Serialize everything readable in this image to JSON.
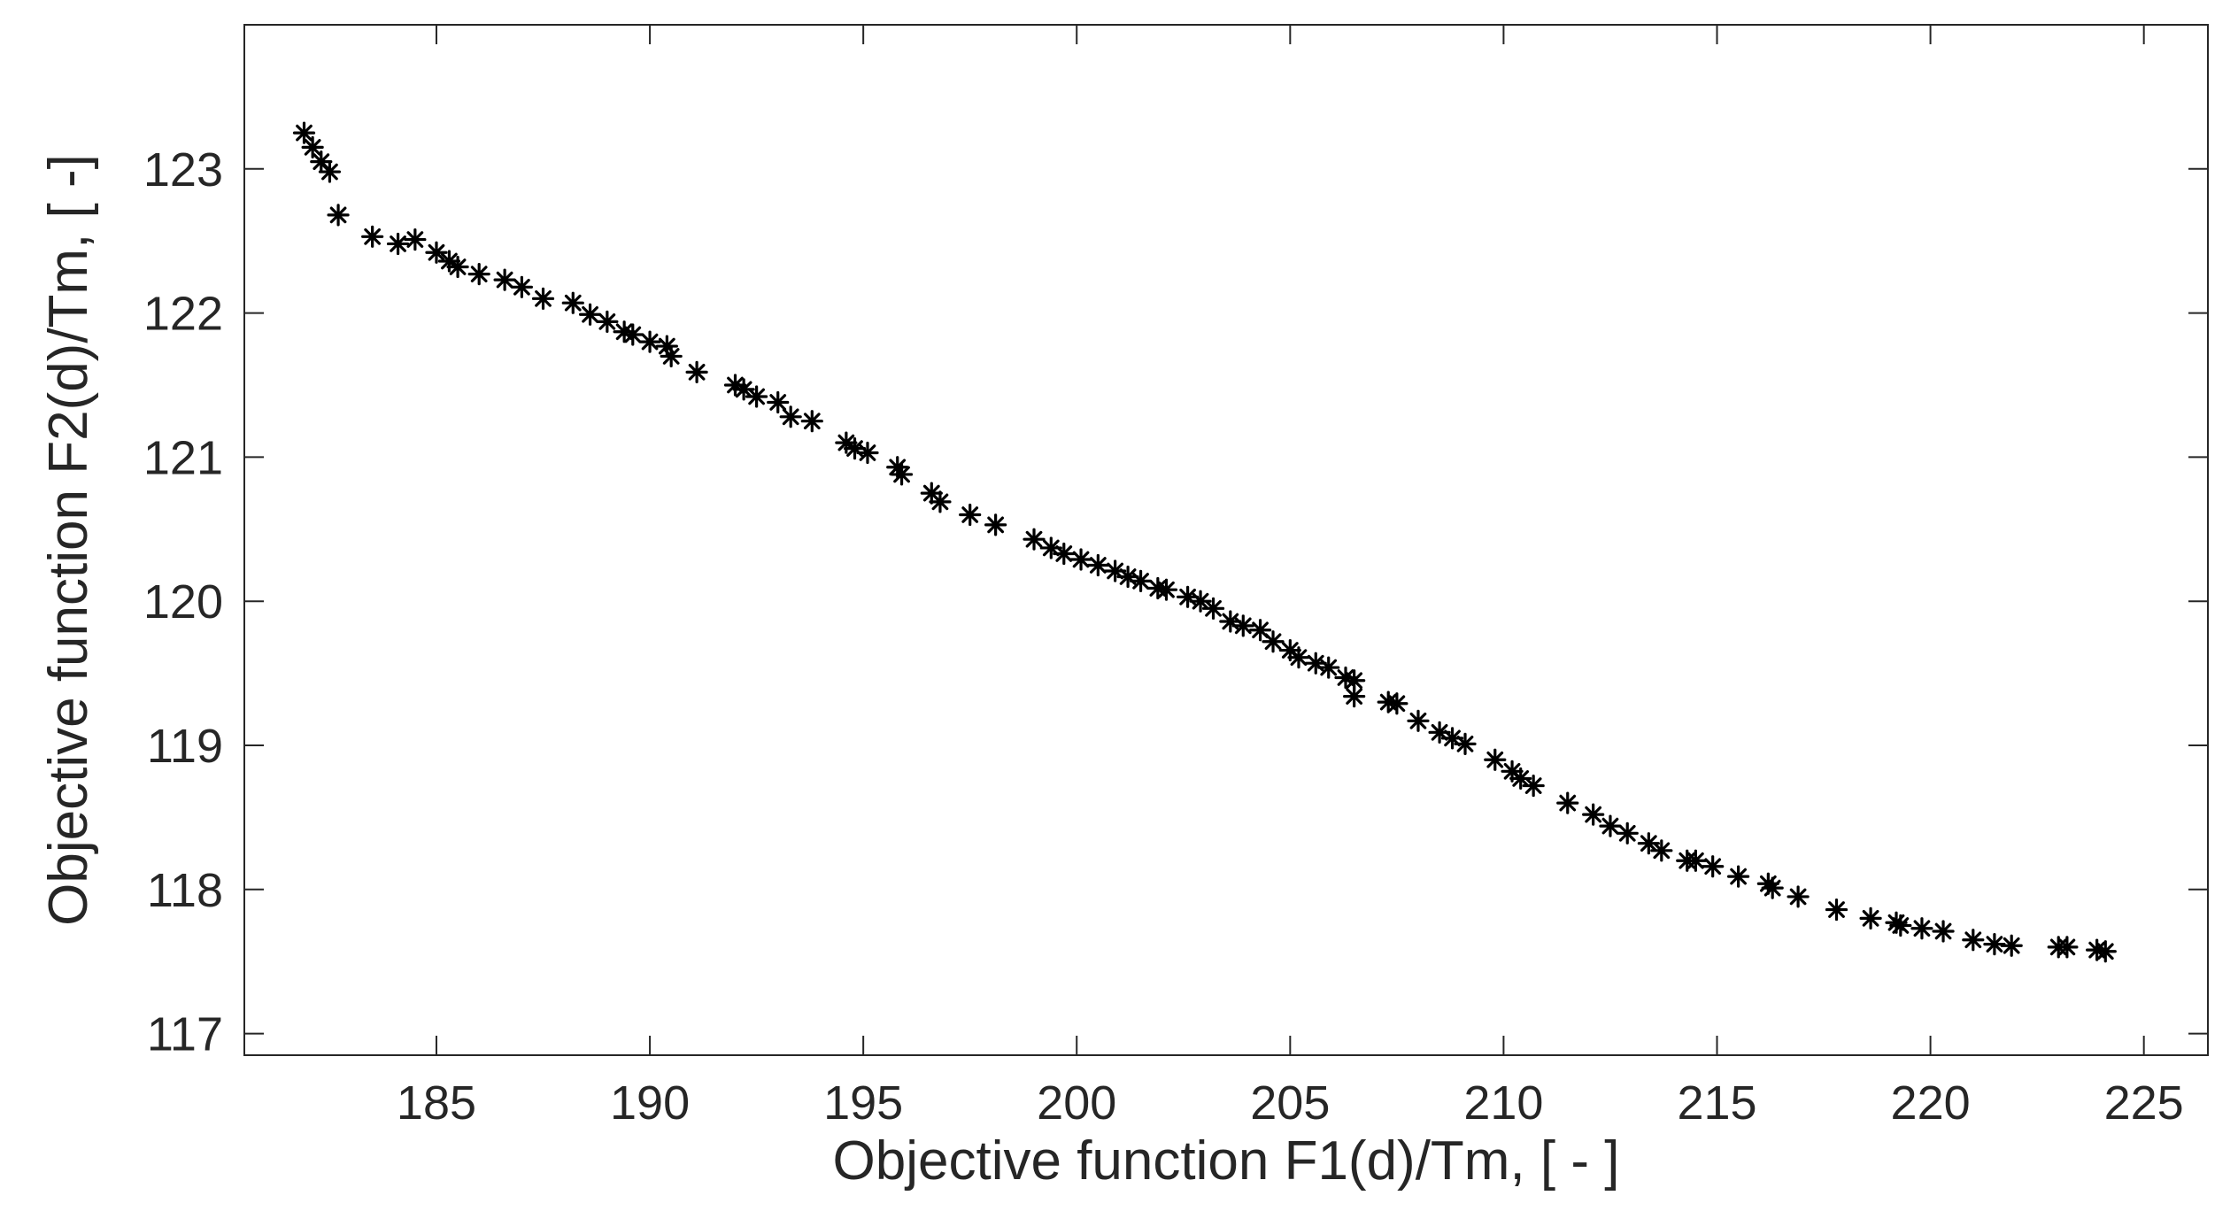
{
  "chart_data": {
    "type": "scatter",
    "title": "",
    "xlabel": "Objective function F1(d)/Tm, [ - ]",
    "ylabel": "Objective function F2(d)/Tm, [ -]",
    "xlim": [
      180.5,
      226.5
    ],
    "ylim": [
      116.85,
      124.0
    ],
    "xticks": [
      185,
      190,
      195,
      200,
      205,
      210,
      215,
      220,
      225
    ],
    "yticks": [
      117,
      118,
      119,
      120,
      121,
      122,
      123
    ],
    "xtick_labels": [
      "185",
      "190",
      "195",
      "200",
      "205",
      "210",
      "215",
      "220",
      "225"
    ],
    "ytick_labels": [
      "117",
      "118",
      "119",
      "120",
      "121",
      "122",
      "123"
    ],
    "marker": "asterisk",
    "marker_color": "#000000",
    "grid": false,
    "box": true,
    "series": [
      {
        "x": [
          181.9,
          182.1,
          182.3,
          182.5,
          182.7,
          183.5,
          184.1,
          184.5,
          185.0,
          185.3,
          185.5,
          186.0,
          186.6,
          187.0,
          187.5,
          188.2,
          188.6,
          189.0,
          189.4,
          189.6,
          190.0,
          190.4,
          190.5,
          191.1,
          192.0,
          192.2,
          192.5,
          193.0,
          193.3,
          193.8,
          194.6,
          194.8,
          195.1,
          195.8,
          195.9,
          196.6,
          196.8,
          197.5,
          198.1,
          199.0,
          199.4,
          199.7,
          200.1,
          200.5,
          200.9,
          201.2,
          201.5,
          201.9,
          202.1,
          202.6,
          202.9,
          203.2,
          203.6,
          203.9,
          204.3,
          204.6,
          205.0,
          205.2,
          205.6,
          205.9,
          206.3,
          206.5,
          206.5,
          207.3,
          207.5,
          208.0,
          208.5,
          208.8,
          209.1,
          209.8,
          210.2,
          210.4,
          210.7,
          211.5,
          212.1,
          212.5,
          212.9,
          213.4,
          213.7,
          214.3,
          214.5,
          214.9,
          215.5,
          216.2,
          216.3,
          216.9,
          217.8,
          218.6,
          219.2,
          219.3,
          219.8,
          220.3,
          221.0,
          221.5,
          221.9,
          223.0,
          223.2,
          223.9,
          224.1
        ],
        "y": [
          123.25,
          123.15,
          123.05,
          122.98,
          122.68,
          122.53,
          122.48,
          122.51,
          122.42,
          122.36,
          122.32,
          122.27,
          122.23,
          122.18,
          122.1,
          122.07,
          121.99,
          121.94,
          121.87,
          121.85,
          121.8,
          121.77,
          121.7,
          121.59,
          121.5,
          121.47,
          121.42,
          121.38,
          121.28,
          121.25,
          121.1,
          121.06,
          121.03,
          120.93,
          120.88,
          120.75,
          120.69,
          120.6,
          120.53,
          120.43,
          120.37,
          120.33,
          120.29,
          120.25,
          120.21,
          120.17,
          120.14,
          120.09,
          120.08,
          120.03,
          120.0,
          119.95,
          119.86,
          119.83,
          119.8,
          119.72,
          119.66,
          119.61,
          119.57,
          119.54,
          119.47,
          119.45,
          119.34,
          119.3,
          119.29,
          119.17,
          119.09,
          119.05,
          119.01,
          118.9,
          118.82,
          118.77,
          118.72,
          118.6,
          118.52,
          118.44,
          118.39,
          118.32,
          118.27,
          118.2,
          118.2,
          118.16,
          118.09,
          118.04,
          118.01,
          117.95,
          117.86,
          117.8,
          117.77,
          117.75,
          117.73,
          117.71,
          117.65,
          117.62,
          117.61,
          117.6,
          117.6,
          117.58,
          117.57
        ]
      }
    ]
  }
}
